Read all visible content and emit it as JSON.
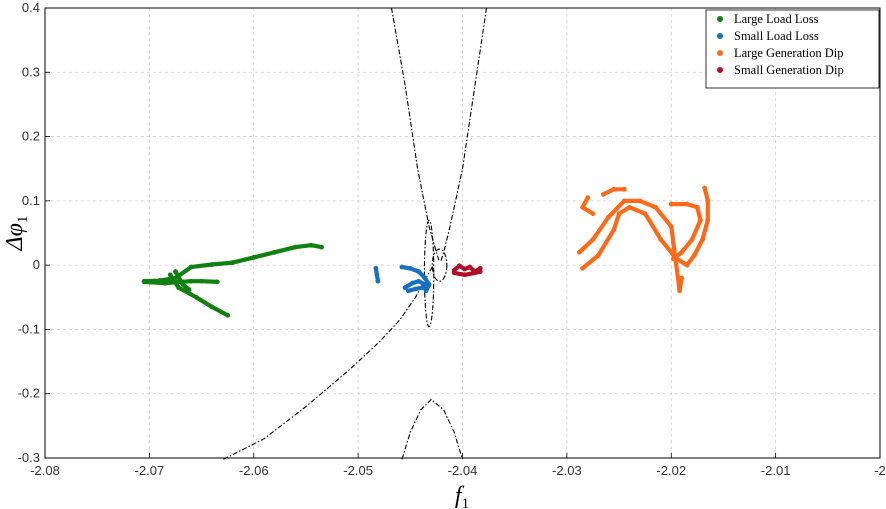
{
  "chart_data": {
    "type": "scatter",
    "title": "",
    "xlabel": "f",
    "xlabel_sub": "1",
    "ylabel": "Δφ",
    "ylabel_sub": "1",
    "xlim": [
      -2.08,
      -2.0
    ],
    "ylim": [
      -0.3,
      0.4
    ],
    "x_ticks": [
      -2.08,
      -2.07,
      -2.06,
      -2.05,
      -2.04,
      -2.03,
      -2.02,
      -2.01,
      -2.0
    ],
    "x_tick_labels": [
      "-2.08",
      "-2.07",
      "-2.06",
      "-2.05",
      "-2.04",
      "-2.03",
      "-2.02",
      "-2.01",
      "-2"
    ],
    "y_ticks": [
      -0.3,
      -0.2,
      -0.1,
      0,
      0.1,
      0.2,
      0.3,
      0.4
    ],
    "y_tick_labels": [
      "-0.3",
      "-0.2",
      "-0.1",
      "0",
      "0.1",
      "0.2",
      "0.3",
      "0.4"
    ],
    "grid": true,
    "legend_position": "top-right",
    "series": [
      {
        "name": "Large Load Loss",
        "color": "#108010",
        "segments": [
          [
            [
              -2.0705,
              -0.025
            ],
            [
              -2.069,
              -0.024
            ],
            [
              -2.0675,
              -0.02
            ],
            [
              -2.066,
              -0.003
            ],
            [
              -2.064,
              0.001
            ],
            [
              -2.062,
              0.004
            ],
            [
              -2.06,
              0.012
            ],
            [
              -2.058,
              0.02
            ],
            [
              -2.056,
              0.028
            ],
            [
              -2.0545,
              0.031
            ],
            [
              -2.0535,
              0.028
            ]
          ],
          [
            [
              -2.0705,
              -0.026
            ],
            [
              -2.0685,
              -0.028
            ],
            [
              -2.067,
              -0.026
            ],
            [
              -2.066,
              -0.025
            ],
            [
              -2.065,
              -0.025
            ],
            [
              -2.0635,
              -0.026
            ]
          ],
          [
            [
              -2.068,
              -0.015
            ],
            [
              -2.0672,
              -0.035
            ],
            [
              -2.0655,
              -0.05
            ],
            [
              -2.064,
              -0.065
            ],
            [
              -2.0625,
              -0.078
            ]
          ],
          [
            [
              -2.0675,
              -0.01
            ],
            [
              -2.0668,
              -0.03
            ],
            [
              -2.0662,
              -0.038
            ]
          ]
        ]
      },
      {
        "name": "Small Load Loss",
        "color": "#1a6fc0",
        "segments": [
          [
            [
              -2.0458,
              -0.003
            ],
            [
              -2.045,
              -0.005
            ],
            [
              -2.0442,
              -0.01
            ],
            [
              -2.0436,
              -0.02
            ],
            [
              -2.0432,
              -0.03
            ],
            [
              -2.0435,
              -0.04
            ]
          ],
          [
            [
              -2.0483,
              -0.005
            ],
            [
              -2.0482,
              -0.015
            ],
            [
              -2.0481,
              -0.025
            ]
          ],
          [
            [
              -2.0455,
              -0.035
            ],
            [
              -2.0448,
              -0.028
            ],
            [
              -2.0442,
              -0.025
            ],
            [
              -2.0436,
              -0.03
            ]
          ],
          [
            [
              -2.0452,
              -0.04
            ],
            [
              -2.0445,
              -0.037
            ],
            [
              -2.0438,
              -0.035
            ],
            [
              -2.0433,
              -0.033
            ]
          ]
        ]
      },
      {
        "name": "Large Generation Dip",
        "color": "#ff6a1a",
        "segments": [
          [
            [
              -2.0288,
              0.02
            ],
            [
              -2.0275,
              0.04
            ],
            [
              -2.026,
              0.075
            ],
            [
              -2.0245,
              0.1
            ],
            [
              -2.023,
              0.1
            ],
            [
              -2.0215,
              0.09
            ],
            [
              -2.02,
              0.06
            ],
            [
              -2.0192,
              -0.04
            ],
            [
              -2.019,
              -0.02
            ]
          ],
          [
            [
              -2.0285,
              -0.005
            ],
            [
              -2.027,
              0.015
            ],
            [
              -2.0255,
              0.055
            ],
            [
              -2.025,
              0.08
            ],
            [
              -2.024,
              0.09
            ],
            [
              -2.0225,
              0.08
            ],
            [
              -2.021,
              0.04
            ],
            [
              -2.0195,
              0.01
            ],
            [
              -2.0185,
              0.0
            ]
          ],
          [
            [
              -2.0185,
              0.0
            ],
            [
              -2.0178,
              0.015
            ],
            [
              -2.017,
              0.04
            ],
            [
              -2.0165,
              0.07
            ],
            [
              -2.0165,
              0.1
            ],
            [
              -2.0168,
              0.12
            ]
          ],
          [
            [
              -2.0275,
              0.08
            ],
            [
              -2.0285,
              0.09
            ],
            [
              -2.028,
              0.105
            ]
          ],
          [
            [
              -2.0265,
              0.11
            ],
            [
              -2.0255,
              0.118
            ],
            [
              -2.0245,
              0.118
            ]
          ],
          [
            [
              -2.02,
              0.095
            ],
            [
              -2.0185,
              0.095
            ],
            [
              -2.0175,
              0.09
            ],
            [
              -2.0172,
              0.07
            ],
            [
              -2.018,
              0.04
            ],
            [
              -2.019,
              0.02
            ],
            [
              -2.0198,
              0.01
            ]
          ]
        ]
      },
      {
        "name": "Small Generation Dip",
        "color": "#b0102a",
        "segments": [
          [
            [
              -2.0408,
              -0.008
            ],
            [
              -2.0403,
              -0.001
            ],
            [
              -2.0398,
              -0.006
            ],
            [
              -2.0393,
              -0.003
            ],
            [
              -2.0388,
              -0.01
            ],
            [
              -2.0383,
              -0.005
            ]
          ],
          [
            [
              -2.0408,
              -0.012
            ],
            [
              -2.0398,
              -0.015
            ],
            [
              -2.0388,
              -0.012
            ],
            [
              -2.0383,
              -0.01
            ]
          ]
        ]
      },
      {
        "name": "",
        "color": "#000000",
        "style": "dashdot",
        "segments": [
          [
            [
              -2.0468,
              0.4
            ],
            [
              -2.0455,
              0.28
            ],
            [
              -2.0443,
              0.15
            ],
            [
              -2.0432,
              0.06
            ],
            [
              -2.0425,
              0.02
            ],
            [
              -2.0422,
              0.005
            ]
          ],
          [
            [
              -2.0377,
              0.4
            ],
            [
              -2.0388,
              0.28
            ],
            [
              -2.04,
              0.15
            ],
            [
              -2.0412,
              0.06
            ],
            [
              -2.0418,
              0.02
            ],
            [
              -2.0421,
              0.005
            ]
          ],
          [
            [
              -2.0629,
              -0.302
            ],
            [
              -2.059,
              -0.27
            ],
            [
              -2.055,
              -0.22
            ],
            [
              -2.051,
              -0.165
            ],
            [
              -2.048,
              -0.12
            ],
            [
              -2.046,
              -0.085
            ],
            [
              -2.0445,
              -0.05
            ],
            [
              -2.0435,
              -0.02
            ],
            [
              -2.0428,
              0.0
            ]
          ],
          [
            [
              -2.0458,
              -0.302
            ],
            [
              -2.045,
              -0.26
            ],
            [
              -2.044,
              -0.225
            ],
            [
              -2.043,
              -0.209
            ],
            [
              -2.0418,
              -0.225
            ],
            [
              -2.0408,
              -0.26
            ],
            [
              -2.04,
              -0.302
            ]
          ]
        ],
        "loops": [
          {
            "cx": -2.0432,
            "cy": -0.013,
            "rx": 0.00045,
            "ry": 0.083
          },
          {
            "cx": -2.0422,
            "cy": 0.0,
            "rx": 0.0007,
            "ry": 0.025
          }
        ]
      }
    ]
  }
}
